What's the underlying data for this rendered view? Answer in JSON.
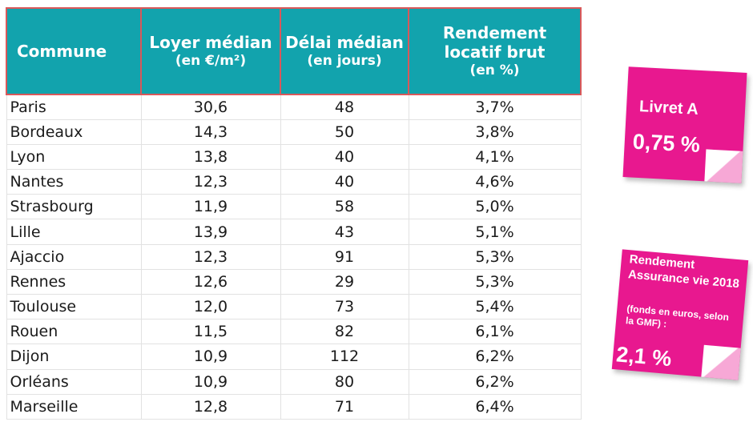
{
  "table": {
    "headers": [
      {
        "main": "Commune",
        "sub": ""
      },
      {
        "main": "Loyer médian",
        "sub": "(en €/m²)"
      },
      {
        "main": "Délai médian",
        "sub": "(en jours)"
      },
      {
        "main": "Rendement locatif brut",
        "sub": "(en %)"
      }
    ],
    "rows": [
      [
        "Paris",
        "30,6",
        "48",
        "3,7%"
      ],
      [
        "Bordeaux",
        "14,3",
        "50",
        "3,8%"
      ],
      [
        "Lyon",
        "13,8",
        "40",
        "4,1%"
      ],
      [
        "Nantes",
        "12,3",
        "40",
        "4,6%"
      ],
      [
        "Strasbourg",
        "11,9",
        "58",
        "5,0%"
      ],
      [
        "Lille",
        "13,9",
        "43",
        "5,1%"
      ],
      [
        "Ajaccio",
        "12,3",
        "91",
        "5,3%"
      ],
      [
        "Rennes",
        "12,6",
        "29",
        "5,3%"
      ],
      [
        "Toulouse",
        "12,0",
        "73",
        "5,4%"
      ],
      [
        "Rouen",
        "11,5",
        "82",
        "6,1%"
      ],
      [
        "Dijon",
        "10,9",
        "112",
        "6,2%"
      ],
      [
        "Orléans",
        "10,9",
        "80",
        "6,2%"
      ],
      [
        "Marseille",
        "12,8",
        "71",
        "6,4%"
      ]
    ]
  },
  "notes": {
    "livret": {
      "title": "Livret A",
      "value": "0,75 %"
    },
    "assurance": {
      "title": "Rendement Assurance vie 2018",
      "detail": "(fonds en euros, selon la GMF) :",
      "value": "2,1 %"
    }
  },
  "colors": {
    "header": "#12a3ad",
    "header_border": "#d9585a",
    "note": "#e8188f"
  }
}
